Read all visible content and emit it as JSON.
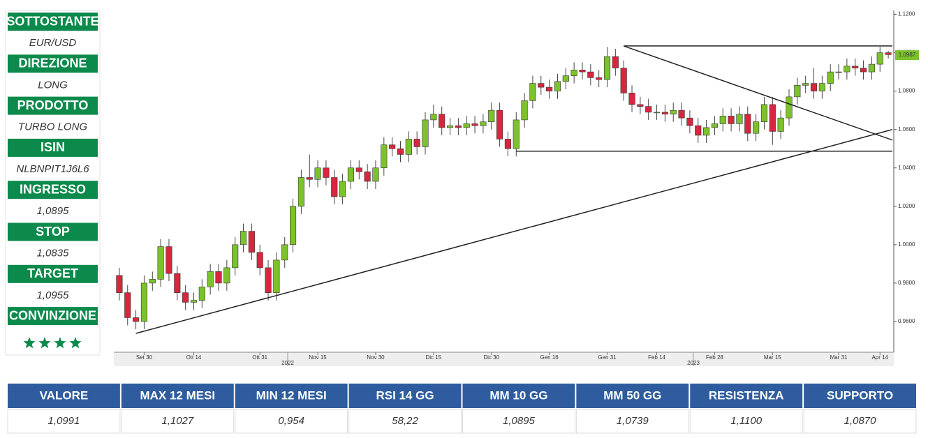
{
  "sidebar": [
    {
      "label": "SOTTOSTANTE",
      "value": "EUR/USD"
    },
    {
      "label": "DIREZIONE",
      "value": "LONG"
    },
    {
      "label": "PRODOTTO",
      "value": "TURBO LONG"
    },
    {
      "label": "ISIN",
      "value": "NLBNPIT1J6L6"
    },
    {
      "label": "INGRESSO",
      "value": "1,0895"
    },
    {
      "label": "STOP",
      "value": "1,0835"
    },
    {
      "label": "TARGET",
      "value": "1,0955"
    },
    {
      "label": "CONVINZIONE",
      "stars": 4
    }
  ],
  "table": {
    "headers": [
      "VALORE",
      "MAX 12 MESI",
      "MIN 12 MESI",
      "RSI 14 GG",
      "MM 10 GG",
      "MM 50 GG",
      "RESISTENZA",
      "SUPPORTO"
    ],
    "values": [
      "1,0991",
      "1,1027",
      "0,954",
      "58,22",
      "1,0895",
      "1,0739",
      "1,1100",
      "1,0870"
    ]
  },
  "chart_data": {
    "type": "candlestick",
    "categories": [
      null,
      null,
      null,
      "Set 30",
      null,
      null,
      null,
      null,
      null,
      "Ott 14",
      null,
      null,
      null,
      null,
      null,
      null,
      null,
      "Ott 31",
      null,
      null,
      null,
      null,
      null,
      null,
      "Nov 15",
      null,
      null,
      null,
      null,
      null,
      null,
      "Nov 30",
      null,
      null,
      null,
      null,
      null,
      null,
      "Dic 15",
      null,
      null,
      null,
      null,
      null,
      null,
      "Dic 30",
      null,
      null,
      null,
      null,
      null,
      null,
      "Gen 16",
      null,
      null,
      null,
      null,
      null,
      null,
      "Gen 31",
      null,
      null,
      null,
      null,
      null,
      "Feb 14",
      null,
      null,
      null,
      null,
      null,
      null,
      "Feb 28",
      null,
      null,
      null,
      null,
      null,
      null,
      "Mar 15",
      null,
      null,
      null,
      null,
      null,
      null,
      null,
      "Mar 31",
      null,
      null,
      null,
      null,
      "Apr 14",
      null
    ],
    "years": [
      "2022",
      "2023"
    ],
    "open": [
      0.984,
      0.975,
      0.962,
      0.96,
      0.98,
      0.982,
      0.999,
      0.985,
      0.975,
      0.97,
      0.971,
      0.978,
      0.986,
      0.98,
      0.988,
      1.0,
      1.007,
      0.996,
      0.988,
      0.975,
      0.992,
      1.0,
      1.02,
      1.035,
      1.034,
      1.04,
      1.035,
      1.025,
      1.033,
      1.04,
      1.038,
      1.033,
      1.04,
      1.052,
      1.05,
      1.047,
      1.055,
      1.051,
      1.065,
      1.068,
      1.061,
      1.062,
      1.061,
      1.063,
      1.062,
      1.064,
      1.07,
      1.055,
      1.05,
      1.065,
      1.075,
      1.084,
      1.082,
      1.08,
      1.085,
      1.088,
      1.091,
      1.09,
      1.087,
      1.086,
      1.098,
      1.092,
      1.079,
      1.073,
      1.072,
      1.069,
      1.069,
      1.068,
      1.07,
      1.066,
      1.062,
      1.057,
      1.061,
      1.063,
      1.067,
      1.063,
      1.068,
      1.058,
      1.064,
      1.073,
      1.059,
      1.066,
      1.077,
      1.083,
      1.084,
      1.08,
      1.084,
      1.09,
      1.09,
      1.093,
      1.092,
      1.09,
      1.094,
      1.1
    ],
    "high": [
      0.988,
      0.979,
      0.966,
      0.984,
      0.986,
      1.003,
      1.003,
      0.989,
      0.979,
      0.975,
      0.982,
      0.99,
      0.99,
      0.992,
      1.004,
      1.011,
      1.011,
      1.0,
      0.992,
      0.996,
      1.004,
      1.024,
      1.039,
      1.047,
      1.044,
      1.044,
      1.039,
      1.037,
      1.044,
      1.044,
      1.042,
      1.044,
      1.056,
      1.056,
      1.054,
      1.059,
      1.059,
      1.069,
      1.073,
      1.072,
      1.066,
      1.066,
      1.067,
      1.067,
      1.068,
      1.074,
      1.074,
      1.059,
      1.069,
      1.079,
      1.088,
      1.088,
      1.086,
      1.089,
      1.092,
      1.095,
      1.095,
      1.094,
      1.091,
      1.103,
      1.102,
      1.096,
      1.083,
      1.077,
      1.076,
      1.073,
      1.073,
      1.074,
      1.074,
      1.07,
      1.066,
      1.065,
      1.067,
      1.071,
      1.071,
      1.072,
      1.072,
      1.068,
      1.077,
      1.077,
      1.07,
      1.081,
      1.087,
      1.088,
      1.092,
      1.088,
      1.094,
      1.094,
      1.097,
      1.097,
      1.096,
      1.098,
      1.103,
      1.101
    ],
    "low": [
      0.971,
      0.958,
      0.956,
      0.956,
      0.976,
      0.978,
      0.981,
      0.971,
      0.966,
      0.966,
      0.967,
      0.974,
      0.976,
      0.976,
      0.984,
      0.996,
      0.992,
      0.984,
      0.971,
      0.971,
      0.988,
      0.996,
      1.016,
      1.03,
      1.03,
      1.031,
      1.021,
      1.021,
      1.029,
      1.034,
      1.029,
      1.029,
      1.036,
      1.046,
      1.043,
      1.043,
      1.047,
      1.047,
      1.061,
      1.057,
      1.057,
      1.057,
      1.057,
      1.058,
      1.058,
      1.06,
      1.051,
      1.046,
      1.046,
      1.061,
      1.071,
      1.078,
      1.076,
      1.076,
      1.081,
      1.084,
      1.086,
      1.083,
      1.082,
      1.082,
      1.088,
      1.075,
      1.069,
      1.068,
      1.065,
      1.065,
      1.064,
      1.064,
      1.062,
      1.058,
      1.053,
      1.053,
      1.057,
      1.059,
      1.059,
      1.059,
      1.054,
      1.054,
      1.06,
      1.052,
      1.055,
      1.062,
      1.073,
      1.079,
      1.076,
      1.076,
      1.08,
      1.086,
      1.086,
      1.088,
      1.086,
      1.086,
      1.09,
      1.097
    ],
    "close": [
      0.975,
      0.962,
      0.96,
      0.98,
      0.982,
      0.999,
      0.985,
      0.975,
      0.97,
      0.971,
      0.978,
      0.986,
      0.98,
      0.988,
      1.0,
      1.007,
      0.996,
      0.988,
      0.975,
      0.992,
      1.0,
      1.02,
      1.035,
      1.034,
      1.04,
      1.035,
      1.025,
      1.033,
      1.04,
      1.038,
      1.033,
      1.04,
      1.052,
      1.05,
      1.047,
      1.055,
      1.051,
      1.065,
      1.068,
      1.061,
      1.062,
      1.061,
      1.063,
      1.062,
      1.064,
      1.07,
      1.055,
      1.05,
      1.065,
      1.075,
      1.084,
      1.082,
      1.08,
      1.085,
      1.088,
      1.091,
      1.09,
      1.087,
      1.086,
      1.098,
      1.092,
      1.079,
      1.073,
      1.072,
      1.069,
      1.069,
      1.068,
      1.07,
      1.066,
      1.062,
      1.057,
      1.061,
      1.063,
      1.067,
      1.063,
      1.068,
      1.058,
      1.064,
      1.073,
      1.059,
      1.066,
      1.077,
      1.083,
      1.084,
      1.08,
      1.084,
      1.09,
      1.09,
      1.093,
      1.092,
      1.09,
      1.094,
      1.1,
      1.099
    ],
    "up_color": "#7cc22b",
    "down_color": "#d7263d",
    "ylim": [
      0.944,
      1.122
    ],
    "yticks": [
      {
        "value": 0.96,
        "label": "0.9600"
      },
      {
        "value": 0.98,
        "label": "0.9800"
      },
      {
        "value": 1.0,
        "label": "1.0000"
      },
      {
        "value": 1.02,
        "label": "1.0200"
      },
      {
        "value": 1.04,
        "label": "1.0400"
      },
      {
        "value": 1.06,
        "label": "1.0600"
      },
      {
        "value": 1.08,
        "label": "1.0800"
      },
      {
        "value": 1.1,
        "label": "1.1000"
      },
      {
        "value": 1.12,
        "label": "1.1200"
      }
    ],
    "axis_side": "right",
    "last_price": {
      "value": 1.0987,
      "label": "1.0987"
    },
    "trendlines": [
      {
        "x": [
          2,
          93.5
        ],
        "y": [
          0.9538,
          1.06
        ]
      },
      {
        "x": [
          61,
          93.5
        ],
        "y": [
          1.1035,
          1.0545
        ]
      },
      {
        "x": [
          61,
          93.5
        ],
        "y": [
          1.1035,
          1.1035
        ]
      },
      {
        "x": [
          48,
          93.5
        ],
        "y": [
          1.0487,
          1.0487
        ]
      }
    ]
  }
}
